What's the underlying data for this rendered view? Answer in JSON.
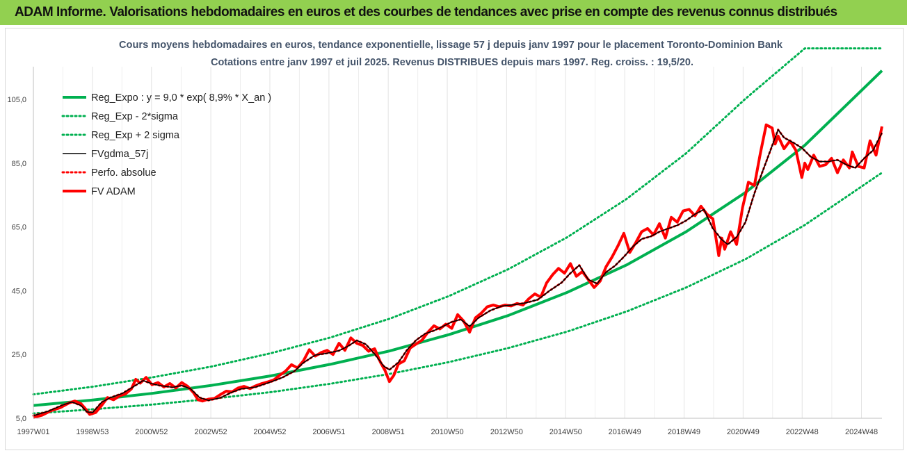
{
  "banner": {
    "text": "ADAM Informe. Valorisations hebdomadaires en euros et des courbes de tendances avec prise en compte des revenus connus distribués"
  },
  "chart_data": {
    "type": "line",
    "title": [
      "Cours moyens hebdomadaires en euros, tendance exponentielle, lissage 57 j depuis janv 1997 pour le placement Toronto-Dominion Bank",
      "Cotations entre janv 1997 et juil 2025. Revenus DISTRIBUES depuis mars 1997. Reg. croiss. : 19,5/20."
    ],
    "xlabel": "",
    "ylabel": "",
    "xlim": [
      1997.0,
      2025.6
    ],
    "ylim": [
      5,
      120
    ],
    "y_ticks": [
      5,
      25,
      45,
      65,
      85,
      105
    ],
    "y_tick_labels": [
      "5,0",
      "25,0",
      "45,0",
      "65,0",
      "85,0",
      "105,0"
    ],
    "x_ticks": [
      1997.0,
      1998.99,
      2000.98,
      2002.98,
      2004.97,
      2006.96,
      2008.96,
      2010.95,
      2012.95,
      2014.94,
      2016.93,
      2018.93,
      2020.92,
      2022.91,
      2024.91
    ],
    "x_tick_labels": [
      "1997W01",
      "1998W53",
      "2000W52",
      "2002W52",
      "2004W52",
      "2006W51",
      "2008W51",
      "2010W50",
      "2012W50",
      "2014W50",
      "2016W49",
      "2018W49",
      "2020W49",
      "2022W48",
      "2024W48"
    ],
    "grid": "vertical",
    "legend_position": "top-left",
    "series": [
      {
        "name": "Reg_Expo : y = 9,0 * exp( 8,9% *  X_an )",
        "color": "#00b050",
        "style": "solid-thick",
        "x": [
          1997.0,
          1999.0,
          2001.0,
          2003.0,
          2005.0,
          2007.0,
          2009.0,
          2011.0,
          2013.0,
          2015.0,
          2017.0,
          2019.0,
          2021.0,
          2023.0,
          2025.6
        ],
        "values": [
          9.0,
          10.7,
          12.8,
          15.3,
          18.3,
          21.9,
          26.1,
          31.2,
          37.2,
          44.5,
          53.1,
          63.5,
          75.8,
          90.6,
          114.0
        ]
      },
      {
        "name": "Reg_Exp - 2*sigma",
        "color": "#00b050",
        "style": "dotted",
        "x": [
          1997.0,
          1999.0,
          2001.0,
          2003.0,
          2005.0,
          2007.0,
          2009.0,
          2011.0,
          2013.0,
          2015.0,
          2017.0,
          2019.0,
          2021.0,
          2023.0,
          2025.6
        ],
        "values": [
          6.5,
          7.8,
          9.3,
          11.1,
          13.2,
          15.8,
          18.9,
          22.6,
          27.0,
          32.2,
          38.5,
          46.0,
          54.9,
          65.6,
          82.0
        ]
      },
      {
        "name": "Reg_Exp + 2 sigma",
        "color": "#00b050",
        "style": "dotted",
        "x": [
          1997.0,
          1999.0,
          2001.0,
          2003.0,
          2005.0,
          2007.0,
          2009.0,
          2011.0,
          2013.0,
          2015.0,
          2017.0,
          2019.0,
          2021.0,
          2023.0,
          2025.6
        ],
        "values": [
          12.5,
          14.9,
          17.8,
          21.2,
          25.4,
          30.3,
          36.2,
          43.3,
          51.7,
          61.8,
          73.8,
          88.1,
          105.2,
          121.0,
          121.0
        ]
      },
      {
        "name": "FVgdma_57j",
        "color": "#000000",
        "style": "solid",
        "x": [
          1997.0,
          1997.5,
          1998.0,
          1998.3,
          1998.6,
          1998.8,
          1999.0,
          1999.3,
          1999.6,
          2000.0,
          2000.3,
          2000.7,
          2001.0,
          2001.3,
          2001.7,
          2002.0,
          2002.3,
          2002.6,
          2002.9,
          2003.3,
          2003.7,
          2004.0,
          2004.5,
          2005.0,
          2005.4,
          2005.8,
          2006.1,
          2006.5,
          2006.9,
          2007.3,
          2007.6,
          2007.9,
          2008.2,
          2008.5,
          2008.8,
          2009.0,
          2009.3,
          2009.6,
          2009.9,
          2010.2,
          2010.5,
          2010.8,
          2011.1,
          2011.4,
          2011.7,
          2012.0,
          2012.4,
          2012.8,
          2013.2,
          2013.6,
          2014.0,
          2014.4,
          2014.8,
          2015.1,
          2015.4,
          2015.7,
          2016.0,
          2016.3,
          2016.6,
          2016.9,
          2017.2,
          2017.5,
          2017.8,
          2018.1,
          2018.4,
          2018.7,
          2019.0,
          2019.3,
          2019.6,
          2019.9,
          2020.2,
          2020.4,
          2020.7,
          2021.0,
          2021.3,
          2021.6,
          2021.9,
          2022.1,
          2022.3,
          2022.6,
          2022.9,
          2023.2,
          2023.5,
          2023.8,
          2024.1,
          2024.4,
          2024.7,
          2025.0,
          2025.3,
          2025.6
        ],
        "values": [
          5.8,
          7.2,
          9.2,
          10.1,
          9.0,
          7.0,
          6.8,
          10.0,
          11.5,
          12.8,
          14.5,
          16.8,
          15.8,
          15.2,
          14.7,
          15.3,
          14.2,
          11.5,
          10.6,
          11.4,
          13.2,
          14.2,
          14.8,
          16.4,
          17.8,
          19.8,
          22.4,
          24.8,
          25.4,
          26.2,
          27.6,
          29.4,
          28.2,
          25.2,
          21.4,
          20.2,
          22.5,
          26.5,
          29.5,
          31.5,
          32.5,
          33.8,
          35.2,
          36.0,
          33.8,
          36.5,
          38.8,
          40.2,
          40.6,
          41.2,
          42.2,
          45.0,
          47.5,
          50.5,
          53.0,
          48.5,
          47.2,
          50.8,
          52.8,
          55.6,
          58.8,
          61.2,
          62.0,
          63.5,
          64.5,
          65.5,
          67.0,
          69.0,
          70.5,
          64.5,
          61.0,
          59.5,
          61.8,
          66.5,
          75.5,
          83.0,
          90.5,
          95.5,
          93.0,
          91.5,
          89.8,
          87.0,
          85.5,
          85.5,
          86.0,
          84.5,
          83.5,
          86.5,
          89.0,
          94.5
        ]
      },
      {
        "name": "Perfo. absolue",
        "color": "#ff0000",
        "style": "dotted",
        "x": [
          1997.0,
          1997.5,
          1998.0,
          1998.3,
          1998.6,
          1998.8,
          1999.0,
          1999.3,
          1999.6,
          2000.0,
          2000.3,
          2000.7,
          2001.0,
          2001.3,
          2001.7,
          2002.0,
          2002.3,
          2002.6,
          2002.9,
          2003.3,
          2003.7,
          2004.0,
          2004.5,
          2005.0,
          2005.4,
          2005.8,
          2006.1,
          2006.5,
          2006.9,
          2007.3,
          2007.6,
          2007.9,
          2008.2,
          2008.5,
          2008.8,
          2009.0,
          2009.3,
          2009.6,
          2009.9,
          2010.2,
          2010.5,
          2010.8,
          2011.1,
          2011.4,
          2011.7,
          2012.0,
          2012.4,
          2012.8,
          2013.2,
          2013.6,
          2014.0,
          2014.4,
          2014.8,
          2015.1,
          2015.4,
          2015.7,
          2016.0,
          2016.3,
          2016.6,
          2016.9,
          2017.2,
          2017.5,
          2017.8,
          2018.1,
          2018.4,
          2018.7,
          2019.0,
          2019.3,
          2019.6,
          2019.9,
          2020.2,
          2020.4,
          2020.7,
          2021.0,
          2021.3,
          2021.6,
          2021.9,
          2022.1,
          2022.3,
          2022.6,
          2022.9,
          2023.2,
          2023.5,
          2023.8,
          2024.1,
          2024.4,
          2024.7,
          2025.0,
          2025.3,
          2025.6
        ],
        "values": [
          5.8,
          7.2,
          9.2,
          10.1,
          9.0,
          7.0,
          6.8,
          10.0,
          11.5,
          12.8,
          14.5,
          16.8,
          15.8,
          15.2,
          14.7,
          15.3,
          14.2,
          11.5,
          10.6,
          11.4,
          13.2,
          14.2,
          14.8,
          16.4,
          17.8,
          19.8,
          22.4,
          24.8,
          25.4,
          26.2,
          27.6,
          29.4,
          28.2,
          25.2,
          21.4,
          20.2,
          22.5,
          26.5,
          29.5,
          31.5,
          32.5,
          33.8,
          35.2,
          36.0,
          33.8,
          36.5,
          38.8,
          40.2,
          40.6,
          41.2,
          42.2,
          45.0,
          47.5,
          50.5,
          53.0,
          48.5,
          47.2,
          50.8,
          52.8,
          55.6,
          58.8,
          61.2,
          62.0,
          63.5,
          64.5,
          65.5,
          67.0,
          69.0,
          70.5,
          64.5,
          61.0,
          59.5,
          61.8,
          66.5,
          75.5,
          83.0,
          90.5,
          95.5,
          93.0,
          91.5,
          89.8,
          87.0,
          85.5,
          85.5,
          86.0,
          84.5,
          83.5,
          86.5,
          89.0,
          94.5
        ]
      },
      {
        "name": "FV ADAM",
        "color": "#ff0000",
        "style": "solid-thick",
        "x": [
          1997.0,
          1997.3,
          1997.6,
          1997.9,
          1998.2,
          1998.4,
          1998.6,
          1998.75,
          1998.9,
          1999.1,
          1999.3,
          1999.5,
          1999.7,
          1999.9,
          2000.1,
          2000.3,
          2000.45,
          2000.6,
          2000.8,
          2001.0,
          2001.2,
          2001.4,
          2001.6,
          2001.8,
          2002.0,
          2002.2,
          2002.4,
          2002.55,
          2002.7,
          2002.9,
          2003.1,
          2003.3,
          2003.5,
          2003.7,
          2003.9,
          2004.1,
          2004.3,
          2004.5,
          2004.7,
          2004.9,
          2005.1,
          2005.3,
          2005.5,
          2005.7,
          2005.9,
          2006.1,
          2006.3,
          2006.5,
          2006.7,
          2006.9,
          2007.1,
          2007.3,
          2007.5,
          2007.7,
          2007.9,
          2008.1,
          2008.3,
          2008.5,
          2008.7,
          2008.85,
          2009.0,
          2009.15,
          2009.3,
          2009.5,
          2009.7,
          2009.9,
          2010.1,
          2010.3,
          2010.5,
          2010.7,
          2010.9,
          2011.1,
          2011.3,
          2011.5,
          2011.7,
          2011.9,
          2012.1,
          2012.3,
          2012.5,
          2012.7,
          2012.9,
          2013.1,
          2013.3,
          2013.5,
          2013.7,
          2013.9,
          2014.1,
          2014.3,
          2014.5,
          2014.7,
          2014.9,
          2015.1,
          2015.3,
          2015.5,
          2015.7,
          2015.9,
          2016.1,
          2016.3,
          2016.5,
          2016.7,
          2016.9,
          2017.1,
          2017.3,
          2017.5,
          2017.7,
          2017.9,
          2018.1,
          2018.3,
          2018.5,
          2018.7,
          2018.9,
          2019.1,
          2019.3,
          2019.5,
          2019.7,
          2019.9,
          2020.1,
          2020.2,
          2020.3,
          2020.5,
          2020.7,
          2020.9,
          2021.1,
          2021.3,
          2021.5,
          2021.7,
          2021.9,
          2022.0,
          2022.1,
          2022.3,
          2022.5,
          2022.7,
          2022.9,
          2023.0,
          2023.1,
          2023.3,
          2023.5,
          2023.7,
          2023.9,
          2024.1,
          2024.3,
          2024.5,
          2024.6,
          2024.8,
          2025.0,
          2025.2,
          2025.4,
          2025.6
        ],
        "values": [
          5.2,
          6.0,
          7.4,
          8.3,
          9.8,
          10.4,
          9.6,
          8.0,
          6.2,
          6.8,
          9.0,
          11.5,
          10.8,
          12.0,
          12.6,
          14.2,
          17.2,
          16.0,
          17.8,
          15.5,
          16.2,
          14.8,
          15.9,
          14.5,
          16.2,
          15.0,
          13.0,
          10.8,
          10.4,
          11.0,
          11.2,
          12.4,
          13.5,
          13.3,
          14.5,
          15.0,
          14.3,
          15.2,
          15.9,
          16.4,
          17.0,
          18.5,
          19.8,
          21.8,
          20.8,
          23.0,
          26.5,
          24.5,
          25.6,
          26.3,
          25.0,
          28.5,
          26.3,
          30.2,
          28.5,
          27.8,
          26.0,
          26.8,
          22.5,
          20.0,
          16.5,
          18.5,
          22.0,
          23.0,
          27.0,
          28.3,
          29.5,
          32.0,
          34.0,
          33.0,
          34.5,
          33.2,
          37.5,
          35.5,
          32.0,
          36.5,
          38.0,
          40.0,
          40.5,
          40.0,
          40.5,
          40.2,
          41.0,
          40.5,
          42.5,
          44.0,
          43.0,
          47.5,
          50.0,
          52.0,
          50.5,
          53.5,
          49.5,
          51.0,
          48.5,
          46.0,
          48.0,
          52.5,
          55.5,
          59.0,
          63.0,
          57.0,
          60.0,
          63.5,
          64.5,
          62.5,
          66.0,
          61.5,
          68.0,
          66.5,
          70.0,
          70.5,
          68.5,
          71.5,
          69.0,
          67.5,
          56.0,
          61.5,
          58.0,
          63.5,
          59.5,
          71.0,
          79.0,
          78.0,
          88.0,
          97.0,
          96.0,
          91.0,
          93.5,
          89.5,
          92.0,
          89.0,
          80.5,
          85.0,
          83.0,
          87.5,
          84.0,
          84.5,
          86.5,
          82.0,
          86.0,
          83.5,
          88.5,
          84.0,
          83.5,
          92.0,
          87.5,
          96.5
        ]
      }
    ]
  }
}
